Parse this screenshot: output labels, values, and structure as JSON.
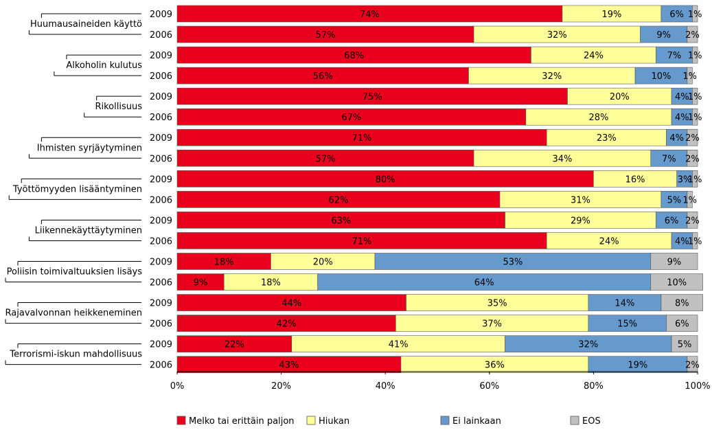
{
  "chart_data": {
    "type": "bar",
    "orientation": "horizontal",
    "stacked": "percent",
    "series": [
      {
        "name": "Melko tai erittäin paljon",
        "color": "#e8001c"
      },
      {
        "name": "Hiukan",
        "color": "#ffff99"
      },
      {
        "name": "Ei lainkaan",
        "color": "#6699cc"
      },
      {
        "name": "EOS",
        "color": "#c0c0c0"
      }
    ],
    "groups": [
      {
        "label": "Huumausaineiden käyttö",
        "rows": [
          {
            "year": "2009",
            "values": [
              74,
              19,
              6,
              1
            ]
          },
          {
            "year": "2006",
            "values": [
              57,
              32,
              9,
              2
            ]
          }
        ]
      },
      {
        "label": "Alkoholin kulutus",
        "rows": [
          {
            "year": "2009",
            "values": [
              68,
              24,
              7,
              1
            ]
          },
          {
            "year": "2006",
            "values": [
              56,
              32,
              10,
              1
            ]
          }
        ]
      },
      {
        "label": "Rikollisuus",
        "rows": [
          {
            "year": "2009",
            "values": [
              75,
              20,
              4,
              1
            ]
          },
          {
            "year": "2006",
            "values": [
              67,
              28,
              4,
              1
            ]
          }
        ]
      },
      {
        "label": "Ihmisten syrjäytyminen",
        "rows": [
          {
            "year": "2009",
            "values": [
              71,
              23,
              4,
              2
            ]
          },
          {
            "year": "2006",
            "values": [
              57,
              34,
              7,
              2
            ]
          }
        ]
      },
      {
        "label": "Työttömyyden lisääntyminen",
        "rows": [
          {
            "year": "2009",
            "values": [
              80,
              16,
              3,
              1
            ]
          },
          {
            "year": "2006",
            "values": [
              62,
              31,
              5,
              1
            ]
          }
        ]
      },
      {
        "label": "Liikennekäyttäytyminen",
        "rows": [
          {
            "year": "2009",
            "values": [
              63,
              29,
              6,
              2
            ]
          },
          {
            "year": "2006",
            "values": [
              71,
              24,
              4,
              1
            ]
          }
        ]
      },
      {
        "label": "Poliisin toimivaltuuksien lisäys",
        "rows": [
          {
            "year": "2009",
            "values": [
              18,
              20,
              53,
              9
            ]
          },
          {
            "year": "2006",
            "values": [
              9,
              18,
              64,
              10
            ]
          }
        ]
      },
      {
        "label": "Rajavalvonnan heikkeneminen",
        "rows": [
          {
            "year": "2009",
            "values": [
              44,
              35,
              14,
              8
            ]
          },
          {
            "year": "2006",
            "values": [
              42,
              37,
              15,
              6
            ]
          }
        ]
      },
      {
        "label": "Terrorismi-iskun mahdollisuus",
        "rows": [
          {
            "year": "2009",
            "values": [
              22,
              41,
              32,
              5
            ]
          },
          {
            "year": "2006",
            "values": [
              43,
              36,
              19,
              2
            ]
          }
        ]
      }
    ],
    "xaxis": {
      "ticks": [
        "0%",
        "20%",
        "40%",
        "60%",
        "80%",
        "100%"
      ],
      "range": [
        0,
        100
      ]
    },
    "legend": "bottom",
    "grid": false
  }
}
